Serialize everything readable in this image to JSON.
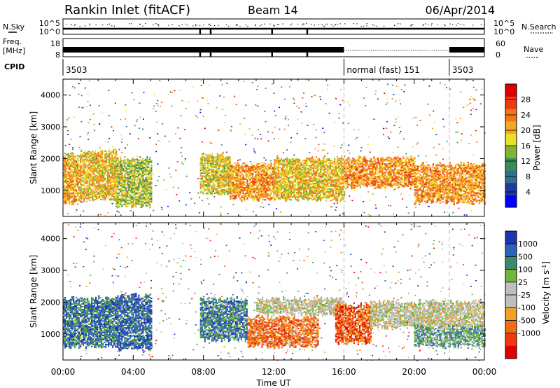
{
  "header": {
    "station": "Rankin Inlet (fitACF)",
    "beam": "Beam 14",
    "date": "06/Apr/2014"
  },
  "status_panel": {
    "nsky_label": "N.Sky",
    "nsearch_label": "N.Search",
    "freq_label_line1": "Freq.",
    "freq_label_line2": "[MHz]",
    "nave_label": "Nave",
    "cpid_label": "CPID",
    "left_ticks": {
      "noise_top": "10^5",
      "noise_bottom": "10^0",
      "freq_top": "18",
      "freq_bottom": "8"
    },
    "right_ticks": {
      "noise_top": "10^5",
      "noise_bottom": "10^0",
      "nave_top": "60",
      "nave_bottom": "0"
    },
    "cpid_segments": [
      {
        "start_hour": 0,
        "label": "3503"
      },
      {
        "start_hour": 16,
        "label": "normal (fast) 151"
      },
      {
        "start_hour": 22,
        "label": "3503"
      }
    ]
  },
  "colors": {
    "power_scale": [
      "#0000ff",
      "#1e3a9e",
      "#2f6f8f",
      "#3a8a5a",
      "#7fb437",
      "#e8e02a",
      "#f5a623",
      "#f07818",
      "#ee3a12",
      "#dd0000"
    ],
    "velocity_scale": [
      "#2033b0",
      "#2a63b8",
      "#3f8a6a",
      "#6fb63a",
      "#bfbfbf",
      "#bfbfbf",
      "#f0a02a",
      "#f06e12",
      "#ee3a12",
      "#e00000"
    ]
  },
  "chart_data": [
    {
      "type": "heatmap",
      "name": "power-panel",
      "x_range_hours": [
        0,
        24
      ],
      "ylim": [
        180,
        4500
      ],
      "ylabel": "Slant Range [km]",
      "yticks": [
        1000,
        2000,
        3000,
        4000
      ],
      "colorbar": {
        "label": "Power [dB]",
        "range": [
          0,
          32
        ],
        "ticks": [
          4,
          8,
          12,
          16,
          20,
          24,
          28
        ]
      },
      "echo_bands": [
        {
          "start_hour": 0.0,
          "end_hour": 1.0,
          "range_km": [
            600,
            2100
          ],
          "level": 0.65
        },
        {
          "start_hour": 1.0,
          "end_hour": 3.0,
          "range_km": [
            700,
            2200
          ],
          "level": 0.6
        },
        {
          "start_hour": 3.0,
          "end_hour": 5.0,
          "range_km": [
            500,
            2000
          ],
          "level": 0.5
        },
        {
          "start_hour": 7.8,
          "end_hour": 9.5,
          "range_km": [
            900,
            2100
          ],
          "level": 0.55
        },
        {
          "start_hour": 9.5,
          "end_hour": 12.0,
          "range_km": [
            700,
            1800
          ],
          "level": 0.7
        },
        {
          "start_hour": 12.0,
          "end_hour": 16.0,
          "range_km": [
            700,
            2000
          ],
          "level": 0.6
        },
        {
          "start_hour": 16.0,
          "end_hour": 20.0,
          "range_km": [
            1100,
            2000
          ],
          "level": 0.7
        },
        {
          "start_hour": 20.0,
          "end_hour": 24.0,
          "range_km": [
            600,
            1800
          ],
          "level": 0.7
        }
      ]
    },
    {
      "type": "heatmap",
      "name": "velocity-panel",
      "x_range_hours": [
        0,
        24
      ],
      "ylim": [
        180,
        4500
      ],
      "ylabel": "Slant Range [km]",
      "yticks": [
        1000,
        2000,
        3000,
        4000
      ],
      "xlabel": "Time UT",
      "xticks": [
        "00:00",
        "04:00",
        "08:00",
        "12:00",
        "16:00",
        "20:00",
        "00:00"
      ],
      "colorbar": {
        "label": "Velocity [m s^-1]",
        "ticks": [
          1000,
          500,
          100,
          25,
          -25,
          -100,
          -500,
          -1000
        ]
      },
      "echo_bands": [
        {
          "start_hour": 0.0,
          "end_hour": 3.0,
          "range_km": [
            600,
            2100
          ],
          "level": 0.2
        },
        {
          "start_hour": 3.0,
          "end_hour": 5.0,
          "range_km": [
            500,
            2200
          ],
          "level": 0.15
        },
        {
          "start_hour": 7.8,
          "end_hour": 10.5,
          "range_km": [
            800,
            2100
          ],
          "level": 0.2
        },
        {
          "start_hour": 10.5,
          "end_hour": 14.5,
          "range_km": [
            600,
            1500
          ],
          "level": 0.75
        },
        {
          "start_hour": 11.0,
          "end_hour": 16.0,
          "range_km": [
            1600,
            2100
          ],
          "level": 0.5
        },
        {
          "start_hour": 15.5,
          "end_hour": 17.5,
          "range_km": [
            700,
            1900
          ],
          "level": 0.8
        },
        {
          "start_hour": 17.5,
          "end_hour": 24.0,
          "range_km": [
            1200,
            2000
          ],
          "level": 0.5
        },
        {
          "start_hour": 20.0,
          "end_hour": 24.0,
          "range_km": [
            600,
            1200
          ],
          "level": 0.3
        }
      ]
    }
  ]
}
